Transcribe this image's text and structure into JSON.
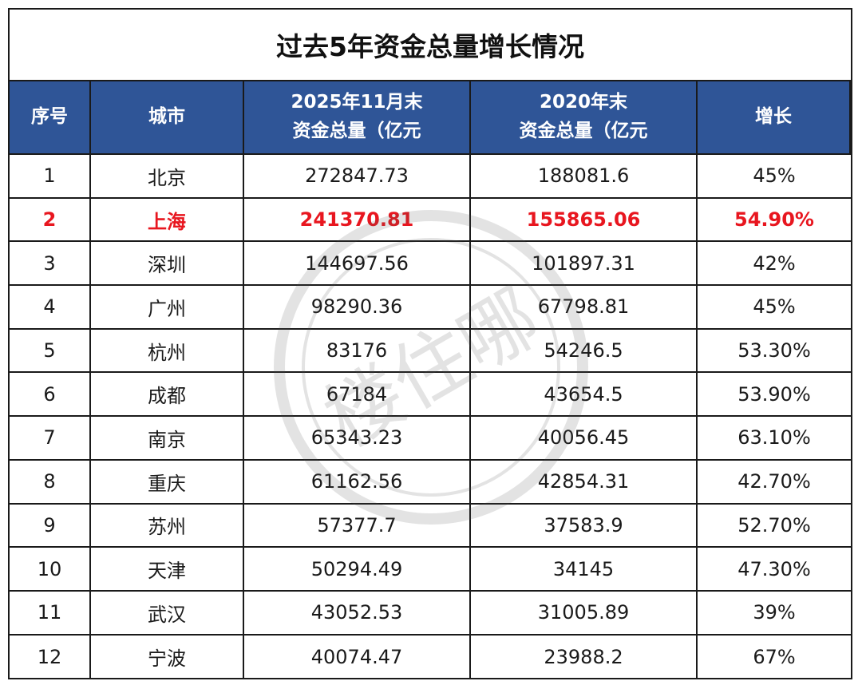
{
  "title": "过去5年资金总量增长情况",
  "headers": [
    {
      "line1": "序号",
      "line2": ""
    },
    {
      "line1": "城市",
      "line2": ""
    },
    {
      "line1": "2025年11月末",
      "line2": "资金总量（亿元"
    },
    {
      "line1": "2020年末",
      "line2": "资金总量（亿元"
    },
    {
      "line1": "增长",
      "line2": ""
    }
  ],
  "rows": [
    {
      "no": "1",
      "city": "北京",
      "v2025": "272847.73",
      "v2020": "188081.6",
      "growth": "45%",
      "highlight": false
    },
    {
      "no": "2",
      "city": "上海",
      "v2025": "241370.81",
      "v2020": "155865.06",
      "growth": "54.90%",
      "highlight": true
    },
    {
      "no": "3",
      "city": "深圳",
      "v2025": "144697.56",
      "v2020": "101897.31",
      "growth": "42%",
      "highlight": false
    },
    {
      "no": "4",
      "city": "广州",
      "v2025": "98290.36",
      "v2020": "67798.81",
      "growth": "45%",
      "highlight": false
    },
    {
      "no": "5",
      "city": "杭州",
      "v2025": "83176",
      "v2020": "54246.5",
      "growth": "53.30%",
      "highlight": false
    },
    {
      "no": "6",
      "city": "成都",
      "v2025": "67184",
      "v2020": "43654.5",
      "growth": "53.90%",
      "highlight": false
    },
    {
      "no": "7",
      "city": "南京",
      "v2025": "65343.23",
      "v2020": "40056.45",
      "growth": "63.10%",
      "highlight": false
    },
    {
      "no": "8",
      "city": "重庆",
      "v2025": "61162.56",
      "v2020": "42854.31",
      "growth": "42.70%",
      "highlight": false
    },
    {
      "no": "9",
      "city": "苏州",
      "v2025": "57377.7",
      "v2020": "37583.9",
      "growth": "52.70%",
      "highlight": false
    },
    {
      "no": "10",
      "city": "天津",
      "v2025": "50294.49",
      "v2020": "34145",
      "growth": "47.30%",
      "highlight": false
    },
    {
      "no": "11",
      "city": "武汉",
      "v2025": "43052.53",
      "v2020": "31005.89",
      "growth": "39%",
      "highlight": false
    },
    {
      "no": "12",
      "city": "宁波",
      "v2025": "40074.47",
      "v2020": "23988.2",
      "growth": "67%",
      "highlight": false
    }
  ],
  "watermark_text": "楼住哪",
  "colors": {
    "header_bg": "#2f5597",
    "highlight": "#e8161f"
  }
}
